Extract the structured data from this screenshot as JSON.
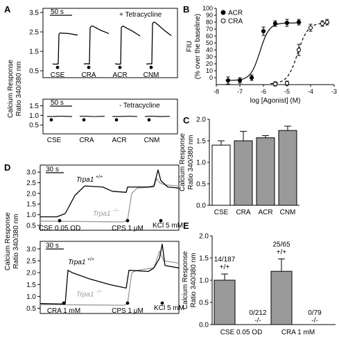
{
  "panels": {
    "A": {
      "letter": "A"
    },
    "B": {
      "letter": "B"
    },
    "C": {
      "letter": "C"
    },
    "D": {
      "letter": "D"
    },
    "E": {
      "letter": "E"
    }
  },
  "chart_data": [
    {
      "id": "A_top",
      "type": "line",
      "condition": "+ Tetracycline",
      "scale_bar": "50 s",
      "ylabel": "Calcium Response Ratio 340/380 nm",
      "yticks": [
        0.5,
        1.5,
        2.5,
        3.5
      ],
      "ylim": [
        0.5,
        3.5
      ],
      "traces": [
        {
          "name": "CSE",
          "baseline": 0.85,
          "peak": 2.45,
          "end": 2.35
        },
        {
          "name": "CRA",
          "baseline": 0.85,
          "peak": 2.8,
          "end": 2.4
        },
        {
          "name": "ACR",
          "baseline": 0.85,
          "peak": 2.8,
          "end": 2.3
        },
        {
          "name": "CNM",
          "baseline": 0.85,
          "peak": 3.0,
          "end": 2.3
        }
      ]
    },
    {
      "id": "A_bottom",
      "type": "line",
      "condition": "- Tetracycline",
      "scale_bar": "50 s",
      "ylabel": "Calcium Response Ratio 340/380 nm",
      "yticks": [
        0.5,
        1.0,
        1.5
      ],
      "ylim": [
        0.4,
        1.7
      ],
      "traces": [
        {
          "name": "CSE",
          "baseline": 0.95
        },
        {
          "name": "CRA",
          "baseline": 0.95
        },
        {
          "name": "ACR",
          "baseline": 0.95
        },
        {
          "name": "CNM",
          "baseline": 0.95
        }
      ]
    },
    {
      "id": "B",
      "type": "scatter",
      "xlabel": "log [Agonist] (M)",
      "ylabel": "FIU (% over the baseline)",
      "xlim": [
        -8,
        -3
      ],
      "ylim": [
        -10,
        100
      ],
      "xticks": [
        -8,
        -7,
        -6,
        -5,
        -4,
        -3
      ],
      "yticks": [
        0,
        10,
        20,
        30,
        40,
        50,
        60,
        70,
        80,
        90,
        100
      ],
      "legend": "top-left",
      "series": [
        {
          "name": "ACR",
          "marker": "filled-circle",
          "line": "solid",
          "points": [
            {
              "x": -7.5,
              "y": -4,
              "err": 5
            },
            {
              "x": -7.0,
              "y": -4,
              "err": 4
            },
            {
              "x": -6.5,
              "y": 0,
              "err": 4
            },
            {
              "x": -6.0,
              "y": 67,
              "err": 6
            },
            {
              "x": -5.5,
              "y": 78,
              "err": 4
            },
            {
              "x": -5.0,
              "y": 79,
              "err": 5
            },
            {
              "x": -4.5,
              "y": 80,
              "err": 4
            }
          ]
        },
        {
          "name": "CRA",
          "marker": "open-circle",
          "line": "dashed",
          "points": [
            {
              "x": -5.5,
              "y": -9,
              "err": 3
            },
            {
              "x": -5.0,
              "y": -8,
              "err": 3
            },
            {
              "x": -4.5,
              "y": 40,
              "err": 8
            },
            {
              "x": -4.0,
              "y": 72,
              "err": 5
            },
            {
              "x": -3.5,
              "y": 78,
              "err": 4
            },
            {
              "x": -3.3,
              "y": 80,
              "err": 4
            }
          ]
        }
      ]
    },
    {
      "id": "C",
      "type": "bar",
      "ylabel": "Calcium Response Ratio 340/380 nm",
      "ylim": [
        0,
        2.0
      ],
      "yticks": [
        0,
        0.5,
        1.0,
        1.5,
        2.0
      ],
      "categories": [
        "CSE",
        "CRA",
        "ACR",
        "CNM"
      ],
      "values": [
        1.4,
        1.5,
        1.57,
        1.74
      ],
      "errors": [
        0.1,
        0.22,
        0.05,
        0.1
      ],
      "fills": [
        "#ffffff",
        "#9a9a9a",
        "#9a9a9a",
        "#9a9a9a"
      ]
    },
    {
      "id": "D_top",
      "type": "line",
      "scale_bar": "30 s",
      "ylabel": "Calcium Response Ratio 340/380 nm",
      "yticks": [
        0.5,
        1.0,
        1.5,
        2.0,
        2.5,
        3.0
      ],
      "ylim": [
        0.4,
        3.2
      ],
      "series": [
        {
          "name": "Trpa1",
          "sup": "+/+",
          "color": "#000000"
        },
        {
          "name": "Trpa1",
          "sup": "−/−",
          "color": "#9a9a9a"
        }
      ],
      "annotations": [
        "CSE 0.05 OD",
        "CPS 1 μM",
        "KCl 5 mM"
      ]
    },
    {
      "id": "D_bottom",
      "type": "line",
      "scale_bar": "30 s",
      "ylabel": "Calcium Response Ratio 340/380 nm",
      "yticks": [
        0.5,
        1.0,
        1.5,
        2.0,
        2.5,
        3.0
      ],
      "ylim": [
        0.4,
        3.2
      ],
      "series": [
        {
          "name": "Trpa1",
          "sup": "+/+",
          "color": "#000000"
        },
        {
          "name": "Trpa1",
          "sup": "−/−",
          "color": "#9a9a9a"
        }
      ],
      "annotations": [
        "CRA 1 mM",
        "CPS 1 μM",
        "KCl 5 mM"
      ]
    },
    {
      "id": "E",
      "type": "bar",
      "ylabel": "Calcium Response Ratio 340/380 nm",
      "ylim": [
        0,
        2.0
      ],
      "yticks": [
        0,
        0.5,
        1.0,
        1.5,
        2.0
      ],
      "groups": [
        "CSE 0.05 OD",
        "CRA 1 mM"
      ],
      "bars": [
        {
          "group": "CSE 0.05 OD",
          "genotype": "+/+",
          "fraction": "14/187",
          "value": 1.0,
          "err": 0.14
        },
        {
          "group": "CSE 0.05 OD",
          "genotype": "-/-",
          "fraction": "0/212",
          "value": 0.0,
          "err": 0
        },
        {
          "group": "CRA 1 mM",
          "genotype": "+/+",
          "fraction": "25/65",
          "value": 1.2,
          "err": 0.28
        },
        {
          "group": "CRA 1 mM",
          "genotype": "-/-",
          "fraction": "0/79",
          "value": 0.0,
          "err": 0
        }
      ]
    }
  ]
}
